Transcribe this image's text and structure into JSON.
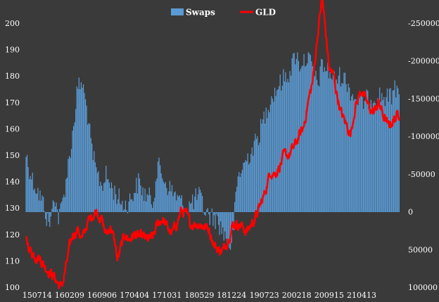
{
  "chart_data": {
    "type": "bar+line",
    "title": "",
    "legend": {
      "placement": "top",
      "entries": [
        {
          "name": "Swaps",
          "kind": "bar",
          "color": "#5b9bd5"
        },
        {
          "name": "GLD",
          "kind": "line",
          "color": "#ff0000"
        }
      ]
    },
    "left_axis": {
      "series": "GLD",
      "range": [
        100,
        200
      ],
      "ticks": [
        100,
        110,
        120,
        130,
        140,
        150,
        160,
        170,
        180,
        190,
        200
      ]
    },
    "right_axis": {
      "series": "Swaps",
      "inverted": true,
      "range": [
        100000,
        -250000
      ],
      "ticks": [
        100000,
        50000,
        0,
        -50000,
        -100000,
        -150000,
        -200000,
        -250000
      ],
      "tick_labels": [
        "100000",
        "50000",
        "0",
        "-50000",
        "-100000",
        "-150000",
        "-200000",
        "-250000"
      ]
    },
    "x_axis": {
      "range": [
        "150503",
        "211215"
      ],
      "tick_labels": [
        "150714",
        "160209",
        "160906",
        "170404",
        "171031",
        "180529",
        "181224",
        "190723",
        "200218",
        "200915",
        "210413"
      ]
    },
    "grid": false,
    "swaps_keypoints": {
      "dates": [
        "150503",
        "150520",
        "150615",
        "150714",
        "150801",
        "150901",
        "150915",
        "151001",
        "151015",
        "151101",
        "151115",
        "151201",
        "160101",
        "160209",
        "160301",
        "160401",
        "160501",
        "160601",
        "160701",
        "160801",
        "160906",
        "161001",
        "161101",
        "161201",
        "170101",
        "170201",
        "170301",
        "170404",
        "170501",
        "170601",
        "170701",
        "170801",
        "170901",
        "171031",
        "171201",
        "180101",
        "180201",
        "180301",
        "180401",
        "180529",
        "180701",
        "180801",
        "180915",
        "181015",
        "181101",
        "181201",
        "181224",
        "190201",
        "190401",
        "190520",
        "190615",
        "190723",
        "190901",
        "191101",
        "200101",
        "200218",
        "200301",
        "200401",
        "200501",
        "200601",
        "200701",
        "200801",
        "200915",
        "201015",
        "201201",
        "210101",
        "210201",
        "210301",
        "210413",
        "210601",
        "210801",
        "211001",
        "211215"
      ],
      "values": [
        -77000,
        -60000,
        -42000,
        -30000,
        -20000,
        -8000,
        12000,
        15000,
        8000,
        -25000,
        -10000,
        10000,
        -20000,
        -75000,
        -105000,
        -165000,
        -170000,
        -135000,
        -82000,
        -52000,
        -35000,
        -48000,
        -35000,
        -25000,
        -15000,
        -8000,
        -14000,
        -28000,
        -40000,
        -25000,
        -20000,
        -14000,
        -62000,
        -35000,
        -28000,
        -20000,
        -12000,
        -5000,
        -10000,
        -22000,
        -2000,
        5000,
        10000,
        20000,
        28000,
        40000,
        48000,
        -45000,
        -70000,
        -88000,
        -100000,
        -125000,
        -150000,
        -170000,
        -185000,
        -212000,
        -195000,
        -200000,
        -205000,
        -188000,
        -168000,
        -195000,
        -185000,
        -175000,
        -180000,
        -175000,
        -160000,
        -150000,
        -145000,
        -150000,
        -155000,
        -150000,
        -170000
      ],
      "noise_amplitude": 14000
    },
    "gld_keypoints": {
      "dates": [
        "150503",
        "150601",
        "150701",
        "150801",
        "150901",
        "151001",
        "151101",
        "151201",
        "151215",
        "160101",
        "160209",
        "160301",
        "160401",
        "160501",
        "160601",
        "160701",
        "160801",
        "160901",
        "161001",
        "161101",
        "161201",
        "161215",
        "170101",
        "170201",
        "170301",
        "170404",
        "170501",
        "170601",
        "170701",
        "170801",
        "170901",
        "171001",
        "171031",
        "171201",
        "180101",
        "180201",
        "180301",
        "180401",
        "180529",
        "180701",
        "180801",
        "180901",
        "181001",
        "181101",
        "181224",
        "190101",
        "190201",
        "190301",
        "190401",
        "190601",
        "190723",
        "190901",
        "191001",
        "191101",
        "191201",
        "200101",
        "200218",
        "200301",
        "200401",
        "200501",
        "200601",
        "200701",
        "200801",
        "200915",
        "201015",
        "201101",
        "201201",
        "210101",
        "210201",
        "210301",
        "210413",
        "210501",
        "210601",
        "210701",
        "210801",
        "210901",
        "211001",
        "211101",
        "211215"
      ],
      "values": [
        118,
        114,
        112,
        111,
        108,
        106,
        104,
        101,
        100,
        103,
        115,
        120,
        122,
        118,
        124,
        127,
        129,
        126,
        120,
        123,
        116,
        110,
        114,
        120,
        118,
        120,
        119,
        119,
        118,
        119,
        124,
        126,
        123,
        120,
        124,
        129,
        128,
        124,
        124,
        123,
        122,
        116,
        114,
        114,
        122,
        124,
        124,
        123,
        121,
        127,
        135,
        144,
        143,
        146,
        150,
        150,
        155,
        157,
        160,
        170,
        178,
        195,
        210,
        183,
        180,
        174,
        166,
        162,
        158,
        168,
        175,
        172,
        168,
        166,
        170,
        165,
        161,
        163,
        166
      ],
      "noise_amplitude": 1.6
    }
  }
}
